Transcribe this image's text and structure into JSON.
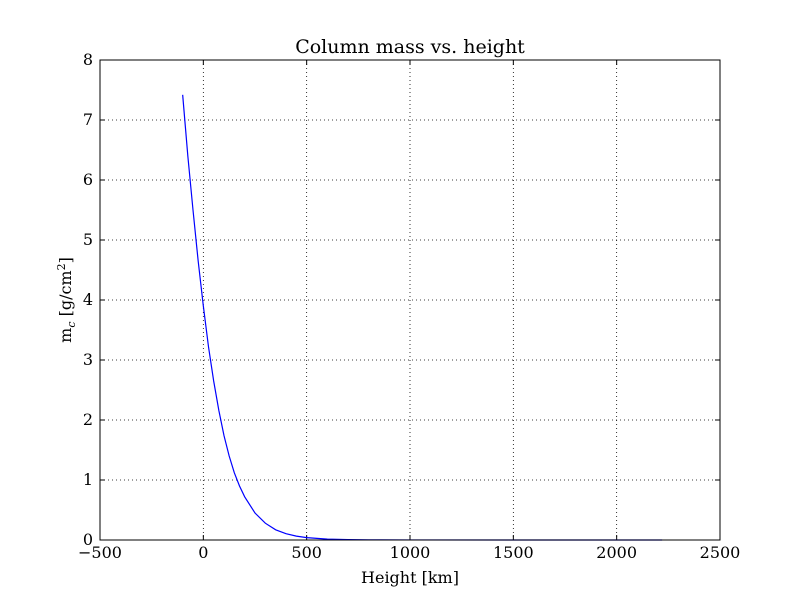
{
  "chart_data": {
    "type": "line",
    "title": "Column mass vs. height",
    "xlabel": "Height [km]",
    "ylabel": {
      "main": "m",
      "subscript": "c",
      "unit_open": " [g/cm",
      "superscript": "2",
      "unit_close": "]"
    },
    "xlim": [
      -500,
      2500
    ],
    "ylim": [
      0,
      8
    ],
    "xticks": [
      -500,
      0,
      500,
      1000,
      1500,
      2000,
      2500
    ],
    "xtick_labels": [
      "−500",
      "0",
      "500",
      "1000",
      "1500",
      "2000",
      "2500"
    ],
    "yticks": [
      0,
      1,
      2,
      3,
      4,
      5,
      6,
      7,
      8
    ],
    "ytick_labels": [
      "0",
      "1",
      "2",
      "3",
      "4",
      "5",
      "6",
      "7",
      "8"
    ],
    "grid": true,
    "line_color": "#0000ff",
    "series": [
      {
        "x": [
          -100,
          -75,
          -50,
          -25,
          0,
          25,
          50,
          75,
          100,
          125,
          150,
          175,
          200,
          250,
          300,
          350,
          400,
          450,
          500,
          600,
          700,
          800,
          1000,
          1500,
          2000,
          2220
        ],
        "y": [
          7.42,
          6.4,
          5.5,
          4.65,
          3.9,
          3.22,
          2.65,
          2.16,
          1.74,
          1.4,
          1.12,
          0.9,
          0.72,
          0.45,
          0.28,
          0.17,
          0.105,
          0.065,
          0.04,
          0.015,
          0.006,
          0.003,
          0.001,
          0.0002,
          0.0001,
          0.0001
        ]
      }
    ]
  }
}
